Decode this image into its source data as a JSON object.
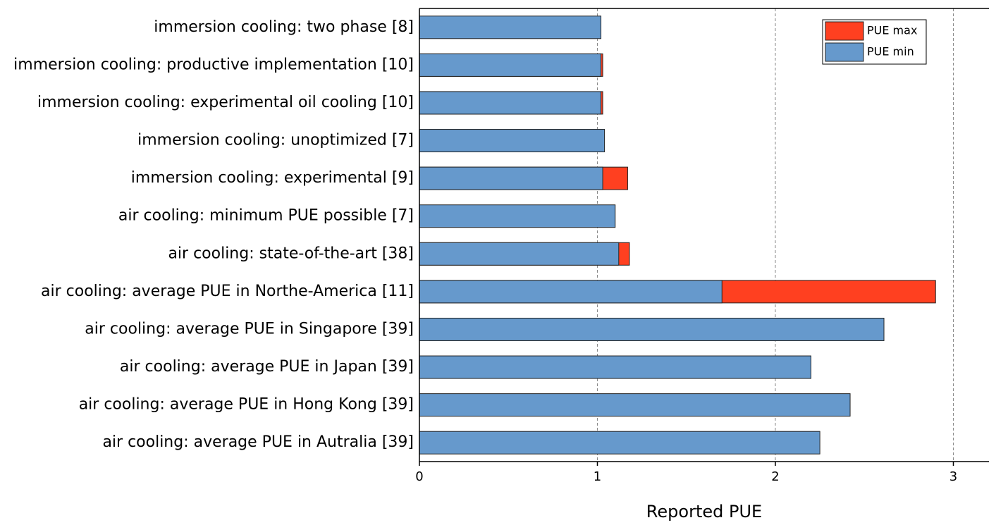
{
  "chart_data": {
    "type": "bar",
    "orientation": "horizontal",
    "x_label": "Reported PUE",
    "categories": [
      "immersion cooling: two phase [8]",
      "immersion cooling: productive implementation [10]",
      "immersion cooling: experimental oil cooling [10]",
      "immersion cooling: unoptimized [7]",
      "immersion cooling: experimental [9]",
      "air cooling: minimum PUE possible [7]",
      "air cooling: state-of-the-art [38]",
      "air cooling: average PUE in Northe-America [11]",
      "air cooling: average PUE in Singapore [39]",
      "air cooling: average PUE in Japan [39]",
      "air cooling: average PUE in Hong Kong [39]",
      "air cooling: average PUE in Autralia [39]"
    ],
    "series": [
      {
        "name": "PUE max",
        "color": "#ff4020",
        "values": [
          null,
          1.03,
          1.03,
          null,
          1.17,
          null,
          1.18,
          2.9,
          null,
          null,
          null,
          null
        ]
      },
      {
        "name": "PUE min",
        "color": "#6699cc",
        "values": [
          1.02,
          1.02,
          1.02,
          1.04,
          1.03,
          1.1,
          1.12,
          1.7,
          2.61,
          2.2,
          2.42,
          2.25
        ]
      }
    ],
    "xlim": [
      0,
      3.2
    ],
    "xticks": [
      0,
      1,
      2,
      3
    ],
    "grid": true,
    "legend": "upper right"
  }
}
